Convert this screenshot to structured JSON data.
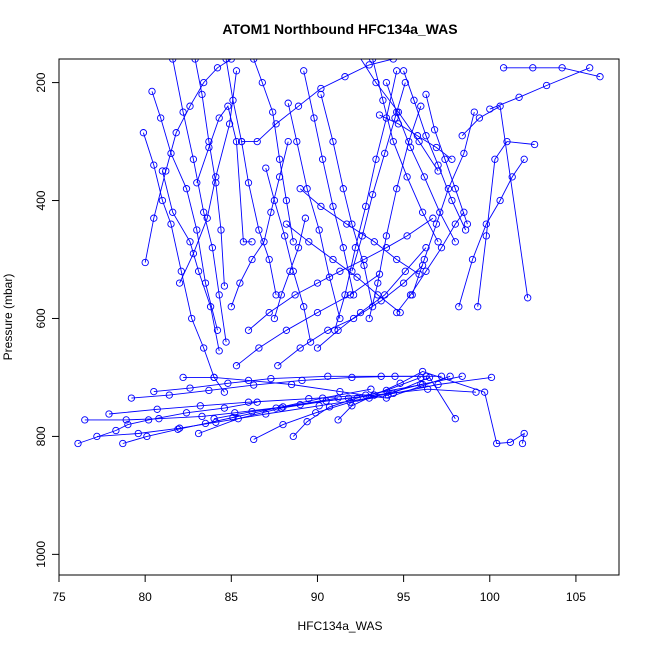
{
  "chart_data": {
    "type": "line",
    "title": "ATOM1 Northbound HFC134a_WAS",
    "xlabel": "HFC134a_WAS",
    "ylabel": "Pressure (mbar)",
    "xlim": [
      75,
      107.5
    ],
    "ylim": [
      1035,
      160
    ],
    "y_axis_inverted": true,
    "x_ticks": [
      75,
      80,
      85,
      90,
      95,
      100,
      105
    ],
    "x_tick_labels": [
      "75",
      "80",
      "85",
      "90",
      "95",
      "100",
      "105"
    ],
    "y_ticks": [
      200,
      400,
      600,
      800,
      1000
    ],
    "y_tick_labels": [
      "200",
      "400",
      "600",
      "800",
      "1000"
    ],
    "grid": false,
    "marker": "open-circle",
    "color": "#0000ff",
    "series": [
      {
        "x": [
          76.1,
          78.3,
          79.0,
          80.2,
          82.4,
          84.6,
          86.5
        ],
        "y": [
          812,
          790,
          780,
          772,
          760,
          752,
          742
        ]
      },
      {
        "x": [
          78.7,
          80.1,
          81.9,
          83.5,
          85.1,
          87.6,
          90.3,
          93.1
        ],
        "y": [
          812,
          800,
          788,
          778,
          768,
          752,
          735,
          720
        ]
      },
      {
        "x": [
          76.5,
          78.9,
          80.8,
          83.3,
          85.2,
          88.0,
          91.2
        ],
        "y": [
          772,
          772,
          770,
          766,
          760,
          750,
          735
        ]
      },
      {
        "x": [
          77.2,
          79.6,
          82.0,
          84.1,
          87.0,
          90.1,
          93.0,
          96.0,
          98.4
        ],
        "y": [
          800,
          795,
          786,
          776,
          762,
          748,
          735,
          712,
          698
        ]
      },
      {
        "x": [
          77.9,
          80.7,
          83.2,
          86.0,
          89.5,
          92.8,
          96.1
        ],
        "y": [
          762,
          754,
          748,
          742,
          736,
          730,
          712
        ]
      },
      {
        "x": [
          79.2,
          81.4,
          83.7,
          86.3,
          89.1,
          92.0,
          94.5,
          97.2
        ],
        "y": [
          735,
          730,
          722,
          713,
          705,
          700,
          698,
          698
        ]
      },
      {
        "x": [
          80.5,
          82.6,
          84.8,
          87.3,
          90.6,
          93.7,
          96.3
        ],
        "y": [
          724,
          718,
          710,
          702,
          698,
          698,
          698
        ]
      },
      {
        "x": [
          82.2,
          84.0,
          86.0,
          88.5,
          91.3,
          94.0,
          97.7
        ],
        "y": [
          700,
          700,
          705,
          712,
          724,
          735,
          698
        ]
      },
      {
        "x": [
          83.1,
          85.4,
          87.9,
          90.5,
          93.3,
          96.4,
          99.2
        ],
        "y": [
          795,
          770,
          752,
          740,
          730,
          720,
          725
        ]
      },
      {
        "x": [
          84.0,
          86.2,
          89.0,
          91.8,
          94.4,
          97.0,
          100.1
        ],
        "y": [
          770,
          758,
          746,
          735,
          727,
          712,
          700
        ]
      },
      {
        "x": [
          86.3,
          88.0,
          89.9,
          91.9,
          94.1,
          96.5,
          98.0
        ],
        "y": [
          805,
          780,
          760,
          742,
          730,
          700,
          770
        ]
      },
      {
        "x": [
          88.6,
          89.4,
          90.7,
          92.3,
          94.0,
          96.0
        ],
        "y": [
          800,
          775,
          750,
          735,
          722,
          700
        ]
      },
      {
        "x": [
          91.2,
          92.0,
          93.3,
          94.8,
          96.1,
          99.7,
          100.4,
          101.2,
          102.0,
          101.9
        ],
        "y": [
          772,
          748,
          730,
          710,
          690,
          725,
          812,
          810,
          795,
          812
        ]
      },
      {
        "x": [
          80.0,
          80.5,
          81.2,
          81.8,
          82.6,
          83.4,
          84.2,
          85.0
        ],
        "y": [
          505,
          430,
          350,
          285,
          240,
          200,
          175,
          160
        ]
      },
      {
        "x": [
          79.9,
          80.5,
          81.0,
          81.5,
          82.1,
          82.7,
          83.4,
          84.0,
          84.6
        ],
        "y": [
          285,
          340,
          400,
          440,
          520,
          600,
          650,
          700,
          725
        ]
      },
      {
        "x": [
          80.4,
          80.9,
          81.5,
          82.4,
          83.0,
          83.5,
          84.2
        ],
        "y": [
          215,
          260,
          320,
          380,
          450,
          540,
          620
        ]
      },
      {
        "x": [
          81.6,
          82.2,
          82.8,
          83.4,
          83.9,
          84.3,
          84.7
        ],
        "y": [
          160,
          250,
          330,
          420,
          480,
          560,
          640
        ]
      },
      {
        "x": [
          81.0,
          81.6,
          82.6,
          83.1,
          83.8,
          84.3
        ],
        "y": [
          350,
          420,
          470,
          520,
          580,
          655
        ]
      },
      {
        "x": [
          82.9,
          83.3,
          83.7,
          84.1,
          84.4,
          84.6
        ],
        "y": [
          160,
          220,
          300,
          370,
          450,
          545
        ]
      },
      {
        "x": [
          83.0,
          83.7,
          84.3,
          84.8,
          85.3,
          85.7,
          86.2
        ],
        "y": [
          370,
          310,
          260,
          240,
          300,
          470,
          470
        ]
      },
      {
        "x": [
          82.0,
          82.8,
          83.6,
          84.1,
          84.9,
          85.3
        ],
        "y": [
          540,
          490,
          430,
          360,
          270,
          180
        ]
      },
      {
        "x": [
          84.7,
          85.1,
          85.6,
          86.0,
          86.6,
          87.2,
          87.6
        ],
        "y": [
          160,
          230,
          300,
          370,
          450,
          500,
          560
        ]
      },
      {
        "x": [
          85.0,
          85.5,
          86.2,
          86.9,
          87.3,
          87.8,
          88.3
        ],
        "y": [
          580,
          540,
          500,
          470,
          420,
          360,
          300
        ]
      },
      {
        "x": [
          86.3,
          86.8,
          87.4,
          87.8,
          88.2,
          88.6
        ],
        "y": [
          160,
          200,
          250,
          330,
          400,
          470
        ]
      },
      {
        "x": [
          87.0,
          87.5,
          88.1,
          88.6,
          89.2,
          89.6
        ],
        "y": [
          345,
          400,
          460,
          520,
          580,
          640
        ]
      },
      {
        "x": [
          87.5,
          87.9,
          88.4,
          88.9,
          89.3
        ],
        "y": [
          600,
          560,
          520,
          480,
          430
        ]
      },
      {
        "x": [
          88.3,
          88.8,
          89.4,
          90.1,
          90.7,
          91.3
        ],
        "y": [
          235,
          300,
          380,
          450,
          530,
          600
        ]
      },
      {
        "x": [
          89.2,
          89.8,
          90.3,
          90.9,
          91.5,
          92.1
        ],
        "y": [
          180,
          260,
          330,
          410,
          480,
          560
        ]
      },
      {
        "x": [
          90.2,
          90.9,
          91.5,
          92.0,
          92.7,
          93.2
        ],
        "y": [
          220,
          300,
          380,
          440,
          510,
          580
        ]
      },
      {
        "x": [
          91.0,
          91.6,
          92.2,
          92.8,
          93.4,
          94.0,
          94.6
        ],
        "y": [
          620,
          560,
          480,
          410,
          330,
          260,
          180
        ]
      },
      {
        "x": [
          92.0,
          92.6,
          93.2,
          93.9,
          94.5,
          95.1
        ],
        "y": [
          520,
          460,
          390,
          320,
          260,
          200
        ]
      },
      {
        "x": [
          93.0,
          93.5,
          94.0,
          94.6,
          95.3,
          96.0
        ],
        "y": [
          600,
          540,
          460,
          380,
          300,
          240
        ]
      },
      {
        "x": [
          93.2,
          93.8,
          94.4,
          95.2,
          96.1,
          97.0
        ],
        "y": [
          160,
          230,
          300,
          360,
          420,
          470
        ]
      },
      {
        "x": [
          94.0,
          94.6,
          95.4,
          96.2,
          97.1,
          98.0
        ],
        "y": [
          200,
          250,
          310,
          360,
          420,
          470
        ]
      },
      {
        "x": [
          95.0,
          95.6,
          96.3,
          97.0,
          97.8,
          98.6
        ],
        "y": [
          180,
          230,
          290,
          340,
          400,
          450
        ]
      },
      {
        "x": [
          96.3,
          96.8,
          97.4,
          98.0,
          98.7
        ],
        "y": [
          220,
          280,
          330,
          380,
          440
        ]
      },
      {
        "x": [
          95.5,
          96.2,
          96.9,
          97.6,
          98.5,
          99.1
        ],
        "y": [
          560,
          500,
          440,
          380,
          320,
          250
        ]
      },
      {
        "x": [
          94.6,
          95.4,
          96.3,
          97.2,
          98.0,
          98.5
        ],
        "y": [
          590,
          560,
          520,
          480,
          440,
          420
        ]
      },
      {
        "x": [
          99.3,
          99.8,
          100.3,
          101.0,
          102.6
        ],
        "y": [
          580,
          460,
          330,
          300,
          305
        ]
      },
      {
        "x": [
          98.2,
          99.0,
          99.8,
          100.6,
          101.3,
          102.0
        ],
        "y": [
          580,
          500,
          440,
          400,
          360,
          330
        ]
      },
      {
        "x": [
          100.8,
          102.5,
          104.2,
          106.4
        ],
        "y": [
          175,
          175,
          175,
          190
        ]
      },
      {
        "x": [
          100.0,
          101.7,
          103.3,
          105.8
        ],
        "y": [
          245,
          225,
          205,
          175
        ]
      },
      {
        "x": [
          98.4,
          99.4,
          100.6,
          102.2
        ],
        "y": [
          290,
          260,
          240,
          565
        ]
      },
      {
        "x": [
          85.6,
          86.5,
          87.6,
          88.9,
          90.2,
          91.6,
          93.0,
          94.4
        ],
        "y": [
          300,
          300,
          270,
          240,
          210,
          190,
          170,
          160
        ]
      },
      {
        "x": [
          86.0,
          87.2,
          88.7,
          90.0,
          91.3,
          92.7,
          94.0,
          95.2,
          96.7
        ],
        "y": [
          620,
          590,
          560,
          540,
          520,
          500,
          480,
          460,
          430
        ]
      },
      {
        "x": [
          85.3,
          86.6,
          88.2,
          90.0,
          91.9,
          93.6
        ],
        "y": [
          680,
          650,
          620,
          590,
          560,
          525
        ]
      },
      {
        "x": [
          87.7,
          89.0,
          90.6,
          92.1,
          93.7,
          95.0,
          96.1
        ],
        "y": [
          680,
          650,
          620,
          600,
          570,
          540,
          510
        ]
      },
      {
        "x": [
          88.2,
          89.5,
          90.9,
          92.3,
          93.5,
          94.8
        ],
        "y": [
          440,
          470,
          500,
          530,
          560,
          590
        ]
      },
      {
        "x": [
          89.0,
          90.2,
          91.7,
          93.3,
          94.6,
          95.9
        ],
        "y": [
          380,
          410,
          440,
          470,
          500,
          525
        ]
      },
      {
        "x": [
          90.0,
          91.2,
          92.5,
          93.9,
          95.1,
          96.3
        ],
        "y": [
          650,
          620,
          590,
          560,
          520,
          480
        ]
      },
      {
        "x": [
          92.3,
          93.4,
          94.7,
          95.9,
          97.0
        ],
        "y": [
          150,
          200,
          250,
          300,
          350
        ]
      },
      {
        "x": [
          93.6,
          94.7,
          95.8,
          96.9,
          97.8
        ],
        "y": [
          255,
          270,
          290,
          310,
          330
        ]
      }
    ]
  }
}
